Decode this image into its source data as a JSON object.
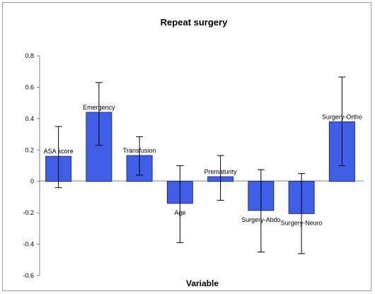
{
  "chart_data": {
    "type": "bar",
    "title": "Repeat surgery",
    "xlabel": "Variable",
    "ylabel": "",
    "ylim": [
      -0.6,
      0.8
    ],
    "yticks": [
      "-0.6",
      "-0.4",
      "-0.2",
      "0",
      "0.2",
      "0.4",
      "0.6",
      "0.8"
    ],
    "grid": false,
    "legend": "none",
    "bar_color": "#3f5fe6",
    "bar_edge_color": "#1f2f8a",
    "categories": [
      "ASA score",
      "Emergency",
      "Transfusion",
      "Age",
      "Prematurity",
      "Surgery-Abdo",
      "Surgery-Neuro",
      "Surgery-Ortho"
    ],
    "values": [
      0.16,
      0.44,
      0.165,
      -0.14,
      0.03,
      -0.185,
      -0.205,
      0.38
    ],
    "error_low": [
      -0.04,
      0.23,
      0.04,
      -0.39,
      -0.12,
      -0.45,
      -0.46,
      0.1
    ],
    "error_high": [
      0.35,
      0.63,
      0.285,
      0.1,
      0.165,
      0.075,
      0.05,
      0.665
    ]
  }
}
